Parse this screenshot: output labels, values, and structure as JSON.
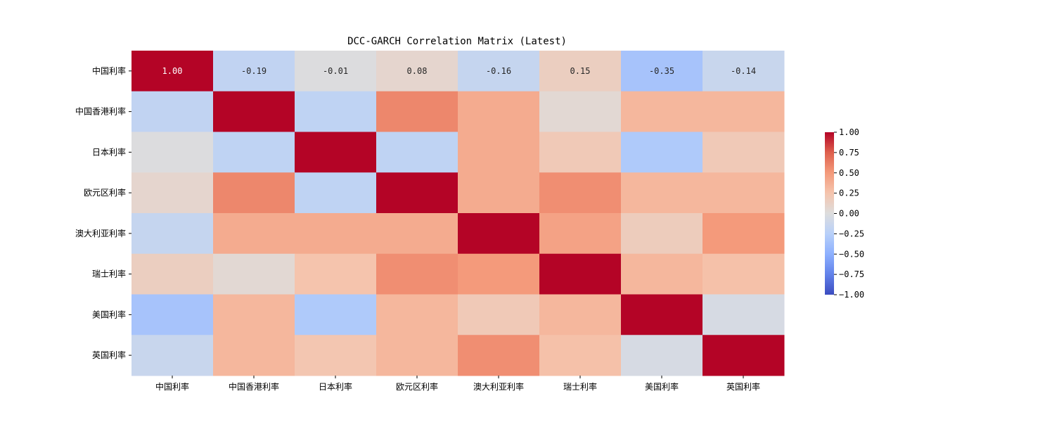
{
  "chart_data": {
    "type": "heatmap",
    "title": "DCC-GARCH Correlation Matrix (Latest)",
    "x_labels": [
      "中国利率",
      "中国香港利率",
      "日本利率",
      "欧元区利率",
      "澳大利亚利率",
      "瑞士利率",
      "美国利率",
      "英国利率"
    ],
    "y_labels": [
      "中国利率",
      "中国香港利率",
      "日本利率",
      "欧元区利率",
      "澳大利亚利率",
      "瑞士利率",
      "美国利率",
      "英国利率"
    ],
    "values": [
      [
        1.0,
        -0.19,
        -0.01,
        0.08,
        -0.16,
        0.15,
        -0.35,
        -0.14
      ],
      [
        -0.19,
        1.0,
        -0.2,
        0.58,
        0.4,
        0.05,
        0.33,
        0.33
      ],
      [
        -0.01,
        -0.2,
        1.0,
        -0.2,
        0.4,
        0.2,
        -0.3,
        0.2
      ],
      [
        0.08,
        0.58,
        -0.2,
        1.0,
        0.4,
        0.55,
        0.33,
        0.33
      ],
      [
        -0.16,
        0.4,
        0.4,
        0.4,
        1.0,
        0.45,
        0.17,
        0.5
      ],
      [
        0.15,
        0.05,
        0.25,
        0.55,
        0.5,
        1.0,
        0.33,
        0.27
      ],
      [
        -0.35,
        0.33,
        -0.3,
        0.33,
        0.2,
        0.33,
        1.0,
        -0.05
      ],
      [
        -0.14,
        0.33,
        0.23,
        0.33,
        0.55,
        0.27,
        -0.05,
        1.0
      ]
    ],
    "annotated_row": 0,
    "annotations": [
      "1.00",
      "-0.19",
      "-0.01",
      "0.08",
      "-0.16",
      "0.15",
      "-0.35",
      "-0.14"
    ],
    "colormap": "coolwarm",
    "vmin": -1.0,
    "vmax": 1.0,
    "colorbar_ticks": [
      "1.00",
      "0.75",
      "0.50",
      "0.25",
      "0.00",
      "−0.25",
      "−0.50",
      "−0.75",
      "−1.00"
    ],
    "colorbar_tick_values": [
      1.0,
      0.75,
      0.5,
      0.25,
      0.0,
      -0.25,
      -0.5,
      -0.75,
      -1.0
    ]
  }
}
